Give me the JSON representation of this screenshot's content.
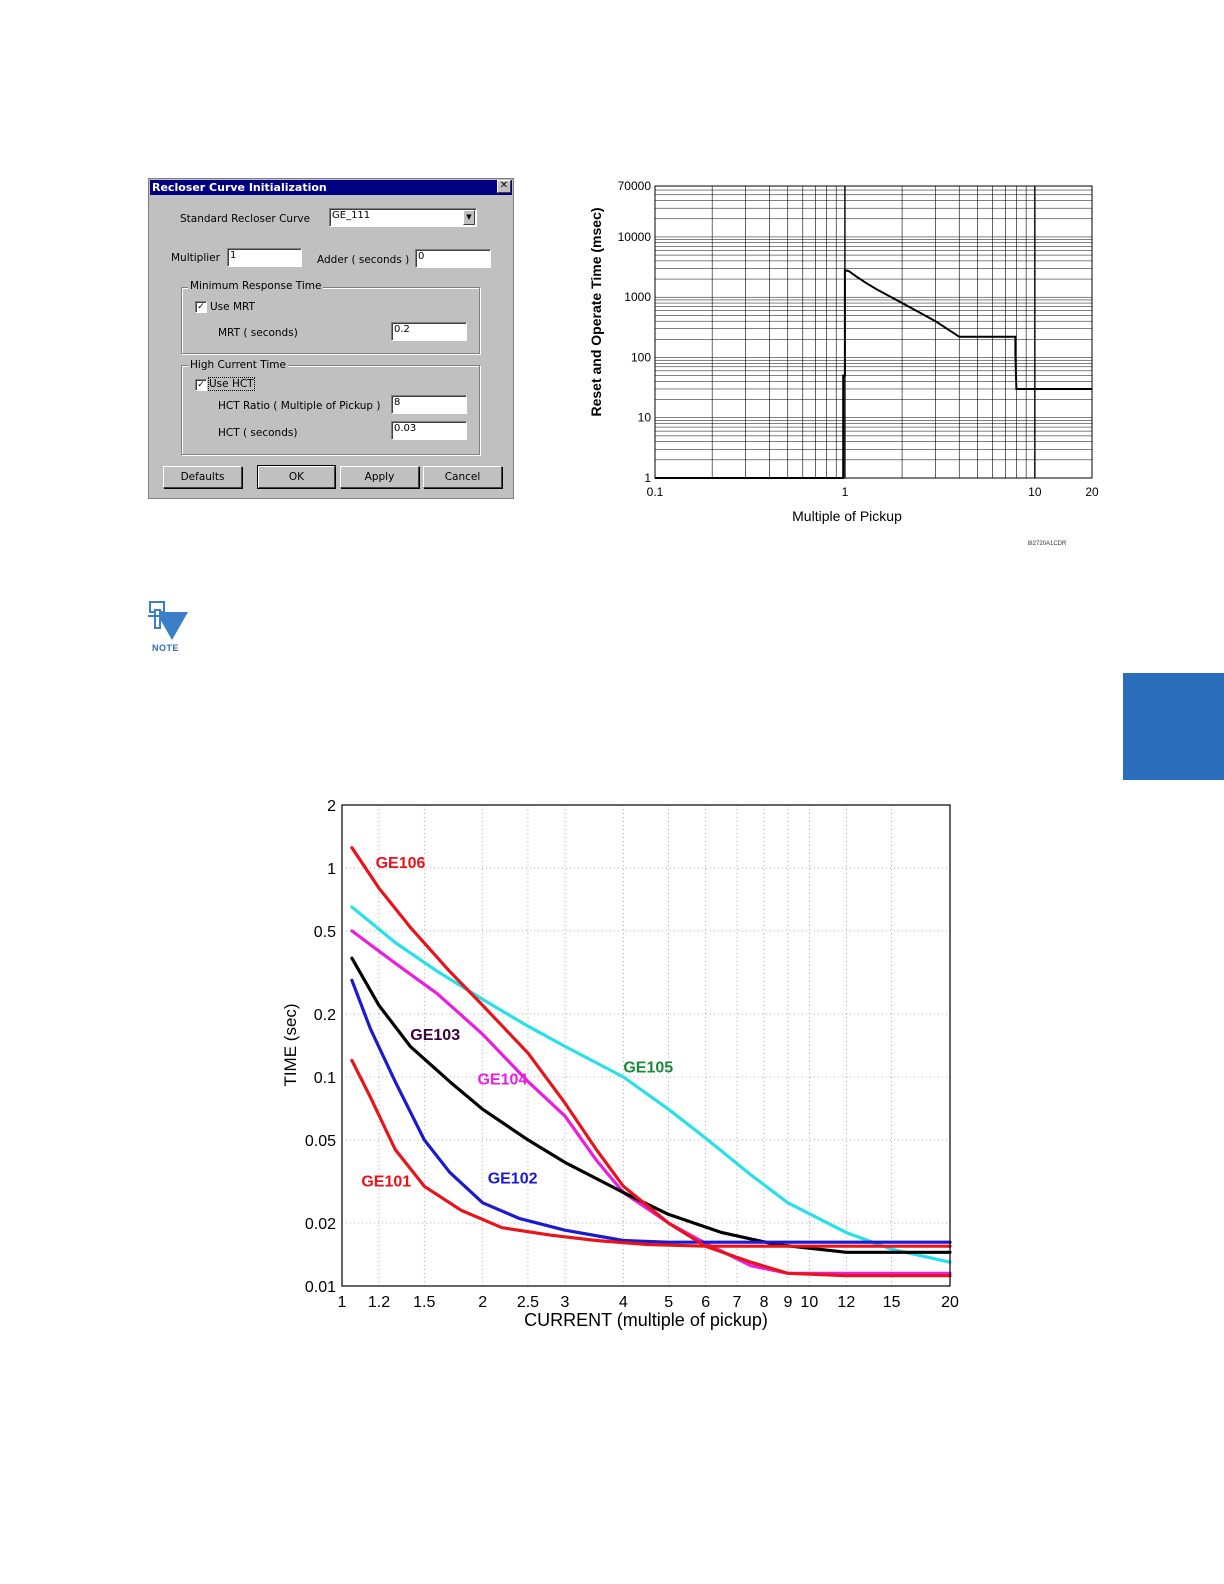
{
  "dialog": {
    "title": "Recloser Curve Initialization",
    "close_glyph": "✕",
    "standard_curve_label": "Standard Recloser Curve",
    "standard_curve_value": "GE_111",
    "multiplier_label": "Multiplier",
    "multiplier_value": "1",
    "adder_label": "Adder ( seconds )",
    "adder_value": "0",
    "mrt_group": "Minimum Response Time",
    "use_mrt_label": "Use MRT",
    "use_mrt_checked": true,
    "mrt_label": "MRT ( seconds)",
    "mrt_value": "0.2",
    "hct_group": "High Current Time",
    "use_hct_label": "Use HCT",
    "use_hct_checked": true,
    "hct_ratio_label": "HCT Ratio ( Multiple of Pickup )",
    "hct_ratio_value": "8",
    "hct_label": "HCT ( seconds)",
    "hct_value": "0.03",
    "buttons": [
      "Defaults",
      "OK",
      "Apply",
      "Cancel"
    ]
  },
  "note_label": "NOTE",
  "colors": {
    "section_tab": "#2a6ebb",
    "dialog_title_bar": "#000080"
  },
  "chart_data": [
    {
      "type": "line",
      "title": "",
      "xlabel": "Multiple of Pickup",
      "ylabel": "Reset and Operate Time (msec)",
      "x_scale": "log",
      "y_scale": "log",
      "xlim": [
        0.1,
        20
      ],
      "ylim": [
        1,
        70000
      ],
      "x_ticks": [
        "0.1",
        "1",
        "10",
        "20"
      ],
      "y_ticks": [
        "1",
        "10",
        "100",
        "1000",
        "10000",
        "70000"
      ],
      "grid": true,
      "figure_code": "8I2720A1CDR",
      "series": [
        {
          "x": [
            0.1,
            0.98,
            0.98,
            1.0,
            1.0,
            1.05,
            1.15,
            1.3,
            1.5,
            2.0,
            3.0,
            4.0,
            7.9,
            7.9,
            8.0,
            8.3,
            20
          ],
          "y": [
            1,
            1,
            50,
            50,
            2800,
            2700,
            2200,
            1700,
            1300,
            800,
            400,
            220,
            220,
            110,
            30,
            30,
            30
          ]
        }
      ]
    },
    {
      "type": "line",
      "title": "",
      "xlabel": "CURRENT (multiple of pickup)",
      "ylabel": "TIME (sec)",
      "x_scale": "log",
      "y_scale": "log",
      "xlim": [
        1,
        20
      ],
      "ylim": [
        0.01,
        2
      ],
      "x_ticks": [
        "1",
        "1.2",
        "1.5",
        "2",
        "2.5",
        "3",
        "4",
        "5",
        "6",
        "7",
        "8",
        "9",
        "10",
        "12",
        "15",
        "20"
      ],
      "y_ticks": [
        "0.01",
        "0.02",
        "0.05",
        "0.1",
        "0.2",
        "0.5",
        "1",
        "2"
      ],
      "grid": true,
      "series": [
        {
          "name": "GE101",
          "color": "#e8141b",
          "x": [
            1.05,
            1.15,
            1.3,
            1.5,
            1.8,
            2.2,
            2.8,
            3.5,
            4.5,
            6,
            8,
            12,
            20
          ],
          "y": [
            0.12,
            0.08,
            0.045,
            0.03,
            0.023,
            0.019,
            0.0175,
            0.0165,
            0.0158,
            0.0155,
            0.0155,
            0.0155,
            0.0155
          ]
        },
        {
          "name": "GE102",
          "color": "#1a1ad0",
          "x": [
            1.05,
            1.15,
            1.3,
            1.5,
            1.7,
            2.0,
            2.4,
            3.0,
            4.0,
            5,
            8,
            12,
            20
          ],
          "y": [
            0.29,
            0.17,
            0.095,
            0.05,
            0.035,
            0.025,
            0.021,
            0.0185,
            0.0165,
            0.0162,
            0.0162,
            0.0162,
            0.0162
          ]
        },
        {
          "name": "GE103",
          "color": "#000000",
          "x": [
            1.05,
            1.2,
            1.4,
            1.7,
            2.0,
            2.5,
            3.0,
            4.0,
            5.0,
            6.5,
            8.5,
            12,
            20
          ],
          "y": [
            0.37,
            0.22,
            0.14,
            0.095,
            0.07,
            0.05,
            0.039,
            0.028,
            0.022,
            0.018,
            0.0158,
            0.0145,
            0.0145
          ]
        },
        {
          "name": "GE104",
          "color": "#e81ee0",
          "x": [
            1.05,
            1.3,
            1.6,
            2.0,
            2.5,
            3.0,
            3.5,
            4.0,
            5.0,
            6.0,
            7.5,
            9,
            12,
            20
          ],
          "y": [
            0.5,
            0.35,
            0.25,
            0.16,
            0.095,
            0.065,
            0.04,
            0.028,
            0.02,
            0.016,
            0.0125,
            0.0115,
            0.0115,
            0.0115
          ]
        },
        {
          "name": "GE105",
          "color": "#28e0e8",
          "x": [
            1.05,
            1.3,
            1.6,
            2.0,
            2.5,
            3.0,
            4.0,
            5.0,
            6.0,
            7.5,
            9,
            12,
            15,
            20
          ],
          "y": [
            0.65,
            0.44,
            0.32,
            0.235,
            0.175,
            0.14,
            0.1,
            0.07,
            0.051,
            0.034,
            0.025,
            0.018,
            0.015,
            0.013
          ]
        },
        {
          "name": "GE106",
          "color": "#e8141b",
          "x": [
            1.05,
            1.2,
            1.4,
            1.7,
            2.0,
            2.5,
            3.0,
            3.5,
            4.0,
            5.0,
            6.0,
            7.5,
            9,
            12,
            20
          ],
          "y": [
            1.25,
            0.8,
            0.52,
            0.32,
            0.22,
            0.13,
            0.075,
            0.045,
            0.03,
            0.02,
            0.0155,
            0.013,
            0.0115,
            0.0112,
            0.0112
          ]
        }
      ]
    }
  ]
}
